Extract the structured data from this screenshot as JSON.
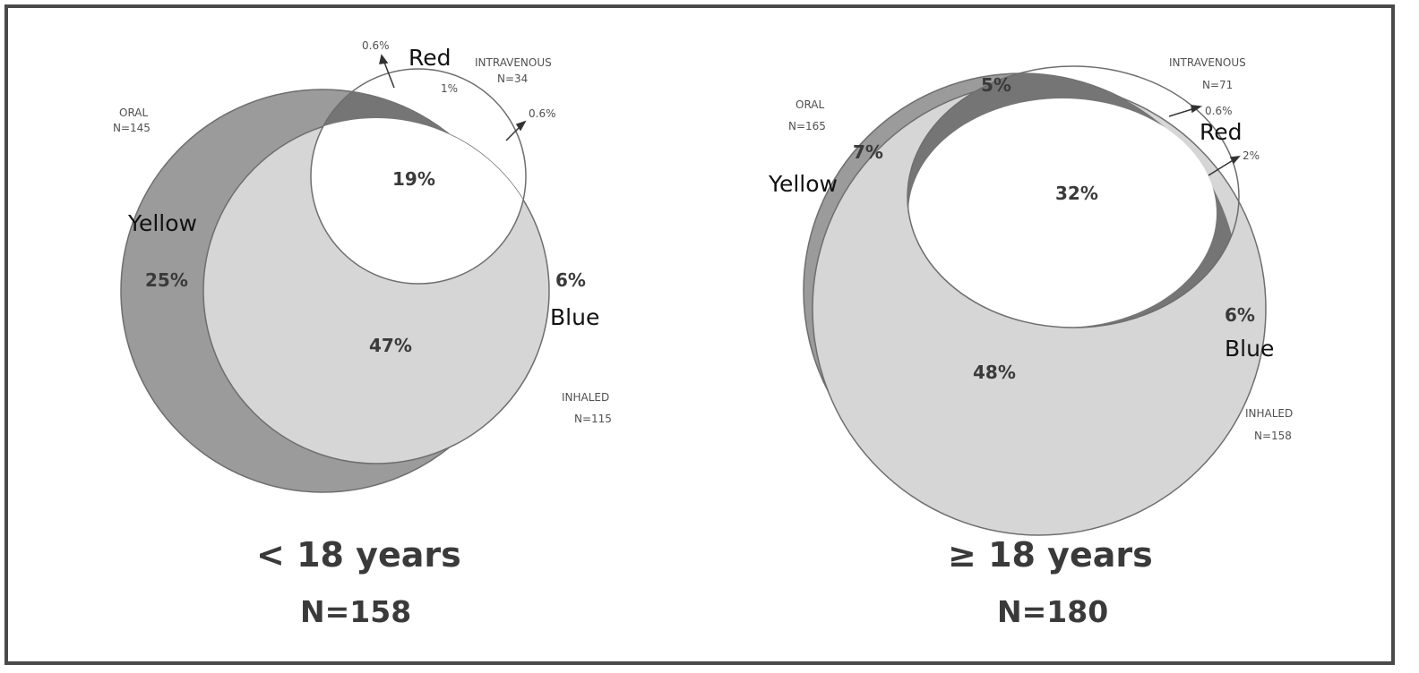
{
  "panels": [
    {
      "oral": {
        "name": "ORAL",
        "n": "N=145"
      },
      "intravenous": {
        "name": "INTRAVENOUS",
        "n": "N=34"
      },
      "inhaled": {
        "name": "INHALED",
        "n": "N=115"
      },
      "regions": {
        "oral_only": "25%",
        "oral_inhaled": "47%",
        "all_three": "19%",
        "inhaled_only": "6%",
        "oral_iv": "1%",
        "oral_iv_small": "0.6%",
        "iv_inhaled": "0.6%"
      },
      "color_words": {
        "yellow": "Yellow",
        "red": "Red",
        "blue": "Blue"
      },
      "age_label": "< 18 years",
      "total_n": "N=158"
    },
    {
      "oral": {
        "name": "ORAL",
        "n": "N=165"
      },
      "intravenous": {
        "name": "INTRAVENOUS",
        "n": "N=71"
      },
      "inhaled": {
        "name": "INHALED",
        "n": "N=158"
      },
      "regions": {
        "oral_only": "7%",
        "oral_iv": "5%",
        "all_three": "32%",
        "oral_inhaled": "48%",
        "inhaled_only": "6%",
        "iv_only": "0.6%",
        "iv_inhaled": "2%"
      },
      "color_words": {
        "yellow": "Yellow",
        "red": "Red",
        "blue": "Blue"
      },
      "age_label": "≥ 18 years",
      "total_n": "N=180"
    }
  ],
  "colors": {
    "oral": "#9b9b9b",
    "inhaled": "#d6d6d6",
    "iv_overlap": "#757575",
    "iv_center": "#ffffff",
    "outline": "#6e6e6e"
  }
}
